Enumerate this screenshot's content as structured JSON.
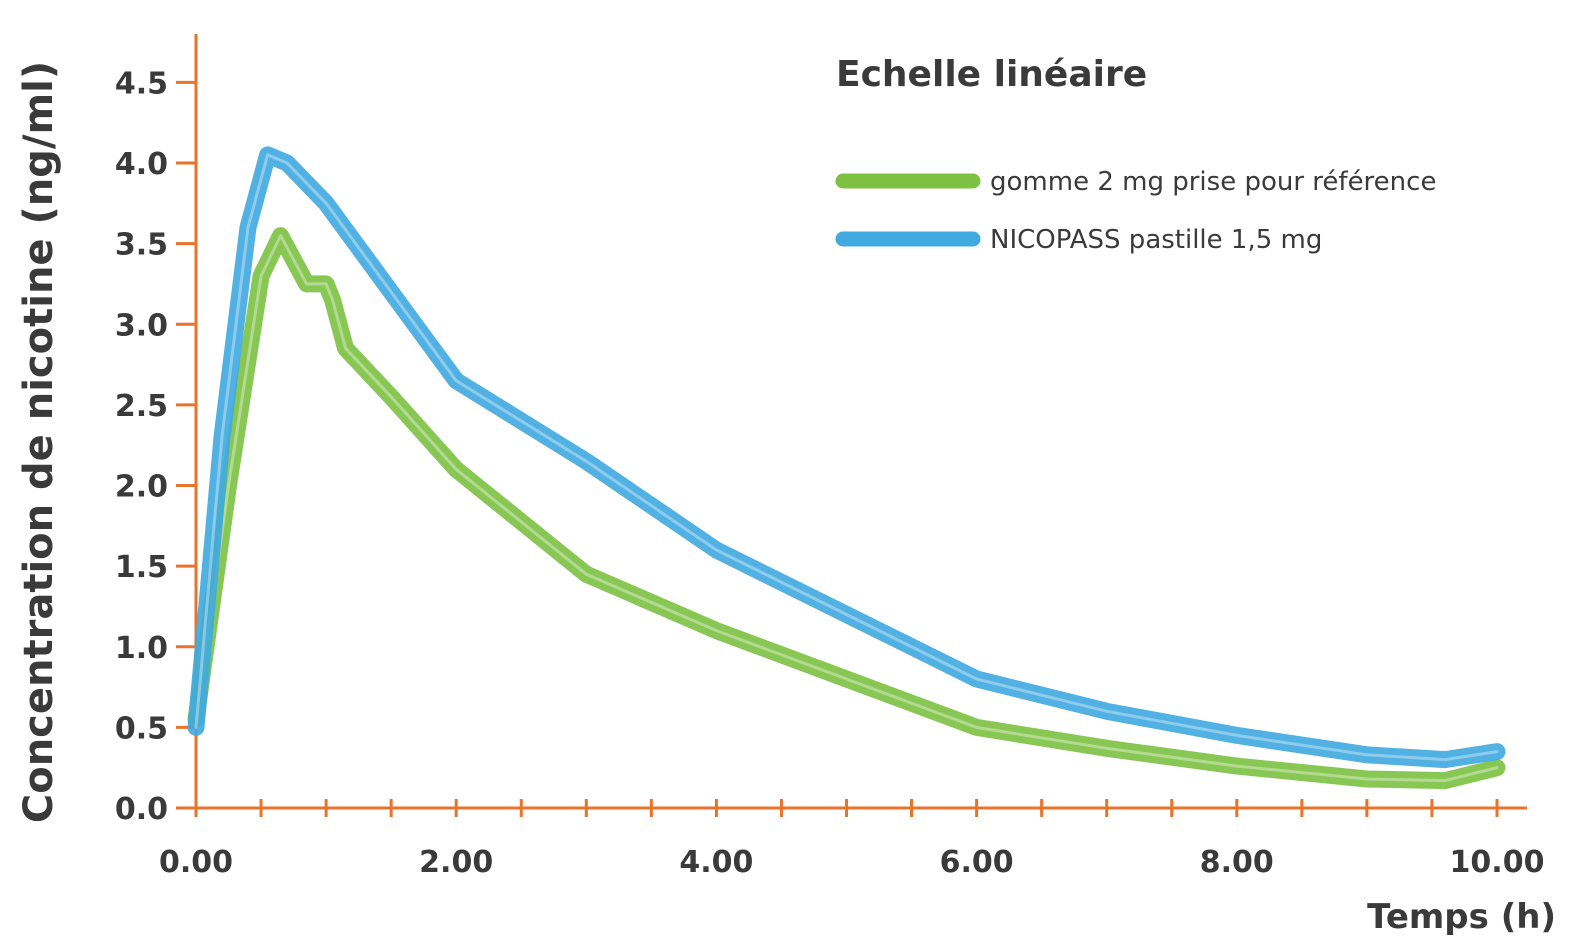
{
  "chart_data": {
    "type": "line",
    "title": "Echelle linéaire",
    "xlabel": "Temps (h)",
    "ylabel": "Concentration de nicotine (ng/ml)",
    "xlim": [
      0,
      10
    ],
    "ylim": [
      0,
      4.8
    ],
    "x_ticks": [
      "0.00",
      "2.00",
      "4.00",
      "6.00",
      "8.00",
      "10.00"
    ],
    "x_tick_values": [
      0,
      2,
      4,
      6,
      8,
      10
    ],
    "y_ticks": [
      "0.0",
      "0.5",
      "1.0",
      "1.5",
      "2.0",
      "2.5",
      "3.0",
      "3.5",
      "4.0",
      "4.5"
    ],
    "y_tick_values": [
      0,
      0.5,
      1,
      1.5,
      2,
      2.5,
      3,
      3.5,
      4,
      4.5
    ],
    "grid": false,
    "legend_position": "top-right",
    "axis_color": "#e8732a",
    "series": [
      {
        "name": "gomme 2 mg prise pour référence",
        "color": "#7cc142",
        "x": [
          0,
          0.25,
          0.5,
          0.65,
          0.75,
          0.85,
          1.0,
          1.05,
          1.15,
          1.5,
          2.0,
          3.0,
          4.0,
          5.0,
          6.0,
          7.0,
          8.0,
          9.0,
          9.6,
          10.0
        ],
        "y": [
          0.55,
          2.0,
          3.3,
          3.55,
          3.4,
          3.25,
          3.25,
          3.15,
          2.85,
          2.55,
          2.1,
          1.45,
          1.1,
          0.8,
          0.5,
          0.37,
          0.26,
          0.18,
          0.17,
          0.25
        ]
      },
      {
        "name": "NICOPASS pastille 1,5 mg",
        "color": "#3fa9e0",
        "x": [
          0,
          0.2,
          0.4,
          0.55,
          0.7,
          1.0,
          1.5,
          2.0,
          3.0,
          4.0,
          5.0,
          6.0,
          7.0,
          8.0,
          9.0,
          9.6,
          10.0
        ],
        "y": [
          0.5,
          2.3,
          3.6,
          4.05,
          4.0,
          3.75,
          3.2,
          2.65,
          2.15,
          1.6,
          1.2,
          0.8,
          0.6,
          0.45,
          0.33,
          0.3,
          0.35
        ]
      }
    ]
  }
}
